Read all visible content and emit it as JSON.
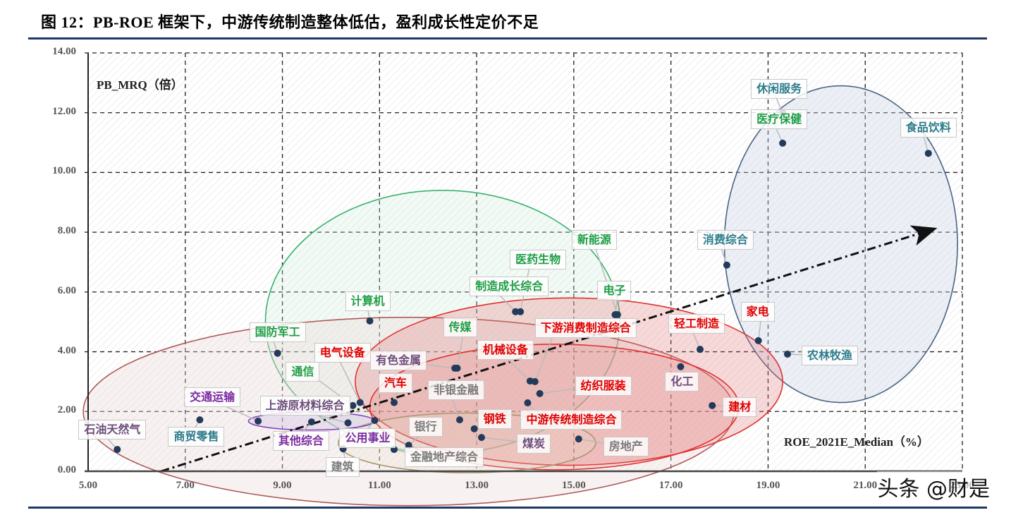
{
  "figure": {
    "title": "图 12：PB-ROE 框架下，中游传统制造整体低估，盈利成长性定价不足",
    "watermark": "头条 @财是"
  },
  "chart_data": {
    "type": "scatter",
    "title": "图 12：PB-ROE 框架下，中游传统制造整体低估，盈利成长性定价不足",
    "xlabel": "ROE_2021E_Median（%）",
    "ylabel": "PB_MRQ（倍）",
    "xlim": [
      5,
      23
    ],
    "ylim": [
      0,
      14
    ],
    "x_ticks": [
      "5.00",
      "7.00",
      "9.00",
      "11.00",
      "13.00",
      "15.00",
      "17.00",
      "19.00",
      "21.00",
      "23.00"
    ],
    "y_ticks": [
      "0.00",
      "2.00",
      "4.00",
      "6.00",
      "8.00",
      "10.00",
      "12.00",
      "14.00"
    ],
    "grid": true,
    "grid_style": "dashed",
    "legend": null,
    "points": [
      {
        "label": "石油天然气",
        "x": 5.6,
        "y": 0.73,
        "group": "upstream"
      },
      {
        "label": "商贸零售",
        "x": 7.3,
        "y": 1.72,
        "group": "consumer"
      },
      {
        "label": "交通运输",
        "x": 8.5,
        "y": 1.68,
        "group": "utilities"
      },
      {
        "label": "其他综合",
        "x": 9.6,
        "y": 1.65,
        "group": "utilities"
      },
      {
        "label": "公用事业",
        "x": 10.9,
        "y": 1.7,
        "group": "utilities"
      },
      {
        "label": "国防军工",
        "x": 8.9,
        "y": 3.95,
        "group": "growth"
      },
      {
        "label": "通信",
        "x": 10.45,
        "y": 2.2,
        "group": "growth"
      },
      {
        "label": "上游原材料综合",
        "x": 10.35,
        "y": 1.62,
        "group": "upstream"
      },
      {
        "label": "计算机",
        "x": 10.8,
        "y": 5.03,
        "group": "growth"
      },
      {
        "label": "电气设备",
        "x": 10.6,
        "y": 2.3,
        "group": "midstream"
      },
      {
        "label": "建筑",
        "x": 10.25,
        "y": 0.75,
        "group": "finance_property"
      },
      {
        "label": "银行",
        "x": 11.6,
        "y": 0.87,
        "group": "finance_property"
      },
      {
        "label": "金融地产综合",
        "x": 11.3,
        "y": 0.73,
        "group": "finance_property"
      },
      {
        "label": "汽车",
        "x": 11.3,
        "y": 2.3,
        "group": "midstream"
      },
      {
        "label": "有色金属",
        "x": 12.55,
        "y": 3.45,
        "group": "upstream"
      },
      {
        "label": "传媒",
        "x": 12.6,
        "y": 3.45,
        "group": "growth"
      },
      {
        "label": "非银金融",
        "x": 12.65,
        "y": 1.72,
        "group": "finance_property"
      },
      {
        "label": "钢铁",
        "x": 12.95,
        "y": 1.42,
        "group": "midstream"
      },
      {
        "label": "煤炭",
        "x": 13.1,
        "y": 1.13,
        "group": "upstream"
      },
      {
        "label": "制造成长综合",
        "x": 13.8,
        "y": 5.34,
        "group": "growth"
      },
      {
        "label": "新能源",
        "x": 15.9,
        "y": 5.24,
        "group": "growth"
      },
      {
        "label": "医药生物",
        "x": 13.9,
        "y": 5.34,
        "group": "growth"
      },
      {
        "label": "电子",
        "x": 15.85,
        "y": 5.24,
        "group": "growth"
      },
      {
        "label": "机械设备",
        "x": 14.1,
        "y": 3.02,
        "group": "midstream"
      },
      {
        "label": "下游消费制造综合",
        "x": 14.2,
        "y": 3.0,
        "group": "midstream"
      },
      {
        "label": "纺织服装",
        "x": 14.3,
        "y": 2.6,
        "group": "midstream"
      },
      {
        "label": "中游传统制造综合",
        "x": 14.05,
        "y": 2.29,
        "group": "midstream"
      },
      {
        "label": "房地产",
        "x": 15.1,
        "y": 1.08,
        "group": "finance_property"
      },
      {
        "label": "化工",
        "x": 17.2,
        "y": 3.5,
        "group": "upstream"
      },
      {
        "label": "轻工制造",
        "x": 17.6,
        "y": 4.08,
        "group": "midstream"
      },
      {
        "label": "建材",
        "x": 17.85,
        "y": 2.2,
        "group": "midstream"
      },
      {
        "label": "家电",
        "x": 18.8,
        "y": 4.37,
        "group": "midstream"
      },
      {
        "label": "农林牧渔",
        "x": 19.4,
        "y": 3.92,
        "group": "consumer"
      },
      {
        "label": "消费综合",
        "x": 18.15,
        "y": 6.9,
        "group": "consumer"
      },
      {
        "label": "医疗保健",
        "x": 19.3,
        "y": 10.98,
        "group": "growth"
      },
      {
        "label": "休闲服务",
        "x": 19.3,
        "y": 12.0,
        "group": "consumer"
      },
      {
        "label": "食品饮料",
        "x": 22.3,
        "y": 10.64,
        "group": "consumer"
      }
    ],
    "trend_arrow": {
      "from": [
        6.5,
        0.0
      ],
      "to": [
        22.4,
        8.1
      ],
      "style": "dash-dot"
    },
    "cluster_ellipses": [
      {
        "name": "consumer",
        "color": "#4a6485",
        "cx": 20.5,
        "cy": 7.6,
        "rx": 2.4,
        "ry": 5.3
      },
      {
        "name": "growth",
        "color": "#3cb371",
        "cx": 12.3,
        "cy": 5.0,
        "rx": 3.65,
        "ry": 4.4
      },
      {
        "name": "upstream",
        "color": "#b05a5a",
        "cx": 11.6,
        "cy": 2.0,
        "rx": 6.7,
        "ry": 3.15
      },
      {
        "name": "midstream_outer",
        "color": "#e03030",
        "cx": 14.9,
        "cy": 3.0,
        "rx": 4.4,
        "ry": 2.8
      },
      {
        "name": "midstream_inner",
        "color": "#e03030",
        "cx": 14.6,
        "cy": 2.15,
        "rx": 3.8,
        "ry": 2.1
      },
      {
        "name": "finance_property",
        "color": "#a89870",
        "cx": 12.8,
        "cy": 0.95,
        "rx": 2.65,
        "ry": 1.0
      },
      {
        "name": "utilities",
        "color": "#8844bb",
        "cx": 9.6,
        "cy": 1.68,
        "rx": 1.3,
        "ry": 0.3
      }
    ]
  },
  "label_colors": {
    "consumer": "#2e7d8c",
    "growth": "#1e9e46",
    "midstream": "#e00000",
    "upstream": "#6b4c7a",
    "utilities": "#7a2aa0",
    "finance_property": "#7a7a7a"
  }
}
